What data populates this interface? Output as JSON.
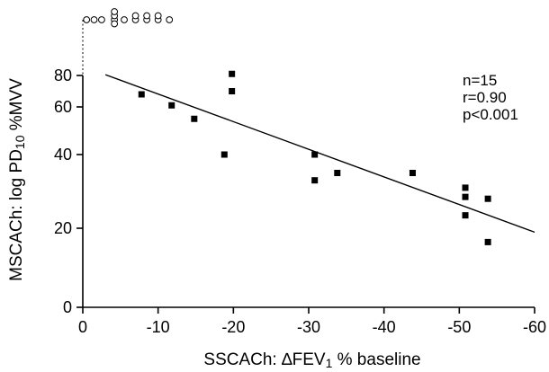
{
  "chart_data": {
    "type": "scatter",
    "x_axis": {
      "label_prefix": "SSCACh:",
      "label_delta": "∆",
      "label_var": "FEV",
      "label_sub": "1",
      "label_suffix": "% baseline",
      "xlim": [
        0,
        -60
      ],
      "ticks": [
        0,
        -10,
        -20,
        -30,
        -40,
        -50,
        -60
      ],
      "tick_labels": [
        "0",
        "-10",
        "-20",
        "-30",
        "-40",
        "-50",
        "-60"
      ]
    },
    "y_axis": {
      "label_prefix": "MSCACh:",
      "label_log": "log PD",
      "label_sub": "10",
      "label_suffix": "%MVV",
      "scale": "log",
      "ticks": [
        0,
        20,
        40,
        60,
        80
      ],
      "tick_labels": [
        "0",
        "20",
        "40",
        "60",
        "80"
      ]
    },
    "points": [
      {
        "x": -7.8,
        "y": 68
      },
      {
        "x": -11.8,
        "y": 61
      },
      {
        "x": -14.8,
        "y": 55
      },
      {
        "x": -18.8,
        "y": 40
      },
      {
        "x": -19.8,
        "y": 81
      },
      {
        "x": -19.8,
        "y": 70
      },
      {
        "x": -30.8,
        "y": 40
      },
      {
        "x": -30.8,
        "y": 33
      },
      {
        "x": -33.8,
        "y": 35
      },
      {
        "x": -43.8,
        "y": 35
      },
      {
        "x": -50.8,
        "y": 31
      },
      {
        "x": -50.8,
        "y": 28.5
      },
      {
        "x": -53.8,
        "y": 28
      },
      {
        "x": -50.8,
        "y": 23.5
      },
      {
        "x": -53.8,
        "y": 16.5
      }
    ],
    "off_scale_points": [
      {
        "x": -0.5
      },
      {
        "x": -1.5
      },
      {
        "x": -2.5
      },
      {
        "x": -4.2
      },
      {
        "x": -4.2
      },
      {
        "x": -4.2
      },
      {
        "x": -4.2
      },
      {
        "x": -5.5
      },
      {
        "x": -7.0
      },
      {
        "x": -7.0
      },
      {
        "x": -8.5
      },
      {
        "x": -8.5
      },
      {
        "x": -10.0
      },
      {
        "x": -10.0
      },
      {
        "x": -11.5
      }
    ],
    "regression_line": {
      "x1": -3,
      "y1": 80.5,
      "x2": -60,
      "y2": 19
    },
    "stats": [
      "n=15",
      "r=0.90",
      "p<0.001"
    ]
  }
}
